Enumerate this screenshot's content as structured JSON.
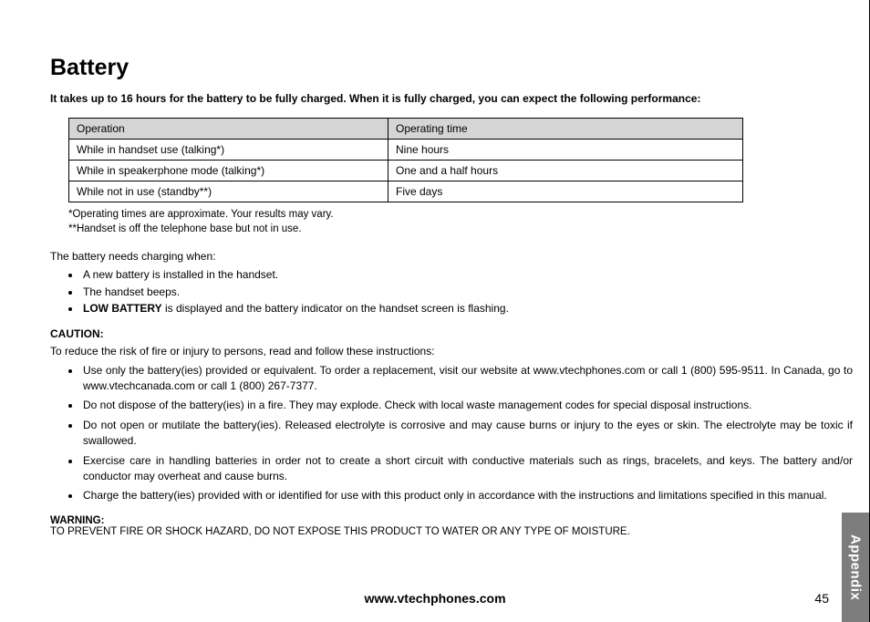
{
  "title": "Battery",
  "intro": "It takes up to 16 hours for the battery to be fully charged. When it is fully charged, you can expect the following performance:",
  "table": {
    "header": {
      "col1": "Operation",
      "col2": "Operating time"
    },
    "rows": [
      {
        "op": "While in handset use (talking*)",
        "time": "Nine hours"
      },
      {
        "op": "While in speakerphone mode (talking*)",
        "time": "One and a half hours"
      },
      {
        "op": "While not in use (standby**)",
        "time": "Five days"
      }
    ]
  },
  "note1": "*Operating times are approximate. Your results may vary.",
  "note2": "**Handset is off the telephone base but not in use.",
  "charging_intro": "The battery needs charging when:",
  "charging_items": {
    "0": "A new battery is installed in the handset.",
    "1": "The handset beeps.",
    "2_prefix": "LOW BATTERY",
    "2_rest": " is displayed and the battery indicator on the handset screen is flashing."
  },
  "caution_heading": "CAUTION:",
  "caution_intro": "To reduce the risk of fire or injury to persons, read and follow these instructions:",
  "caution_items": {
    "0": "Use only the battery(ies) provided or equivalent. To order a replacement, visit our website at www.vtechphones.com or call 1 (800) 595-9511. In Canada, go to www.vtechcanada.com or call 1 (800) 267-7377.",
    "1": "Do not dispose of the battery(ies) in a fire. They may explode. Check with local waste management codes for special disposal instructions.",
    "2": "Do not open or mutilate the battery(ies). Released electrolyte is corrosive and may cause burns or injury to the eyes or skin. The electrolyte may be toxic if swallowed.",
    "3": "Exercise care in handling batteries in order not to create a short circuit with conductive materials such as rings, bracelets, and keys. The battery and/or conductor may overheat and cause burns.",
    "4": "Charge the battery(ies) provided with or identified for use with this product only in accordance with the instructions and limitations specified in this manual."
  },
  "warning_heading": "WARNING:",
  "warning_text": "TO PREVENT FIRE OR SHOCK HAZARD, DO NOT EXPOSE THIS PRODUCT TO WATER OR ANY TYPE OF MOISTURE.",
  "footer_url": "www.vtechphones.com",
  "page_number": "45",
  "side_tab": "Appendix",
  "colors": {
    "table_header_bg": "#d5d5d5",
    "side_tab_bg": "#7d7d7d",
    "side_tab_text": "#ffffff",
    "text": "#000000",
    "page_bg": "#ffffff"
  }
}
